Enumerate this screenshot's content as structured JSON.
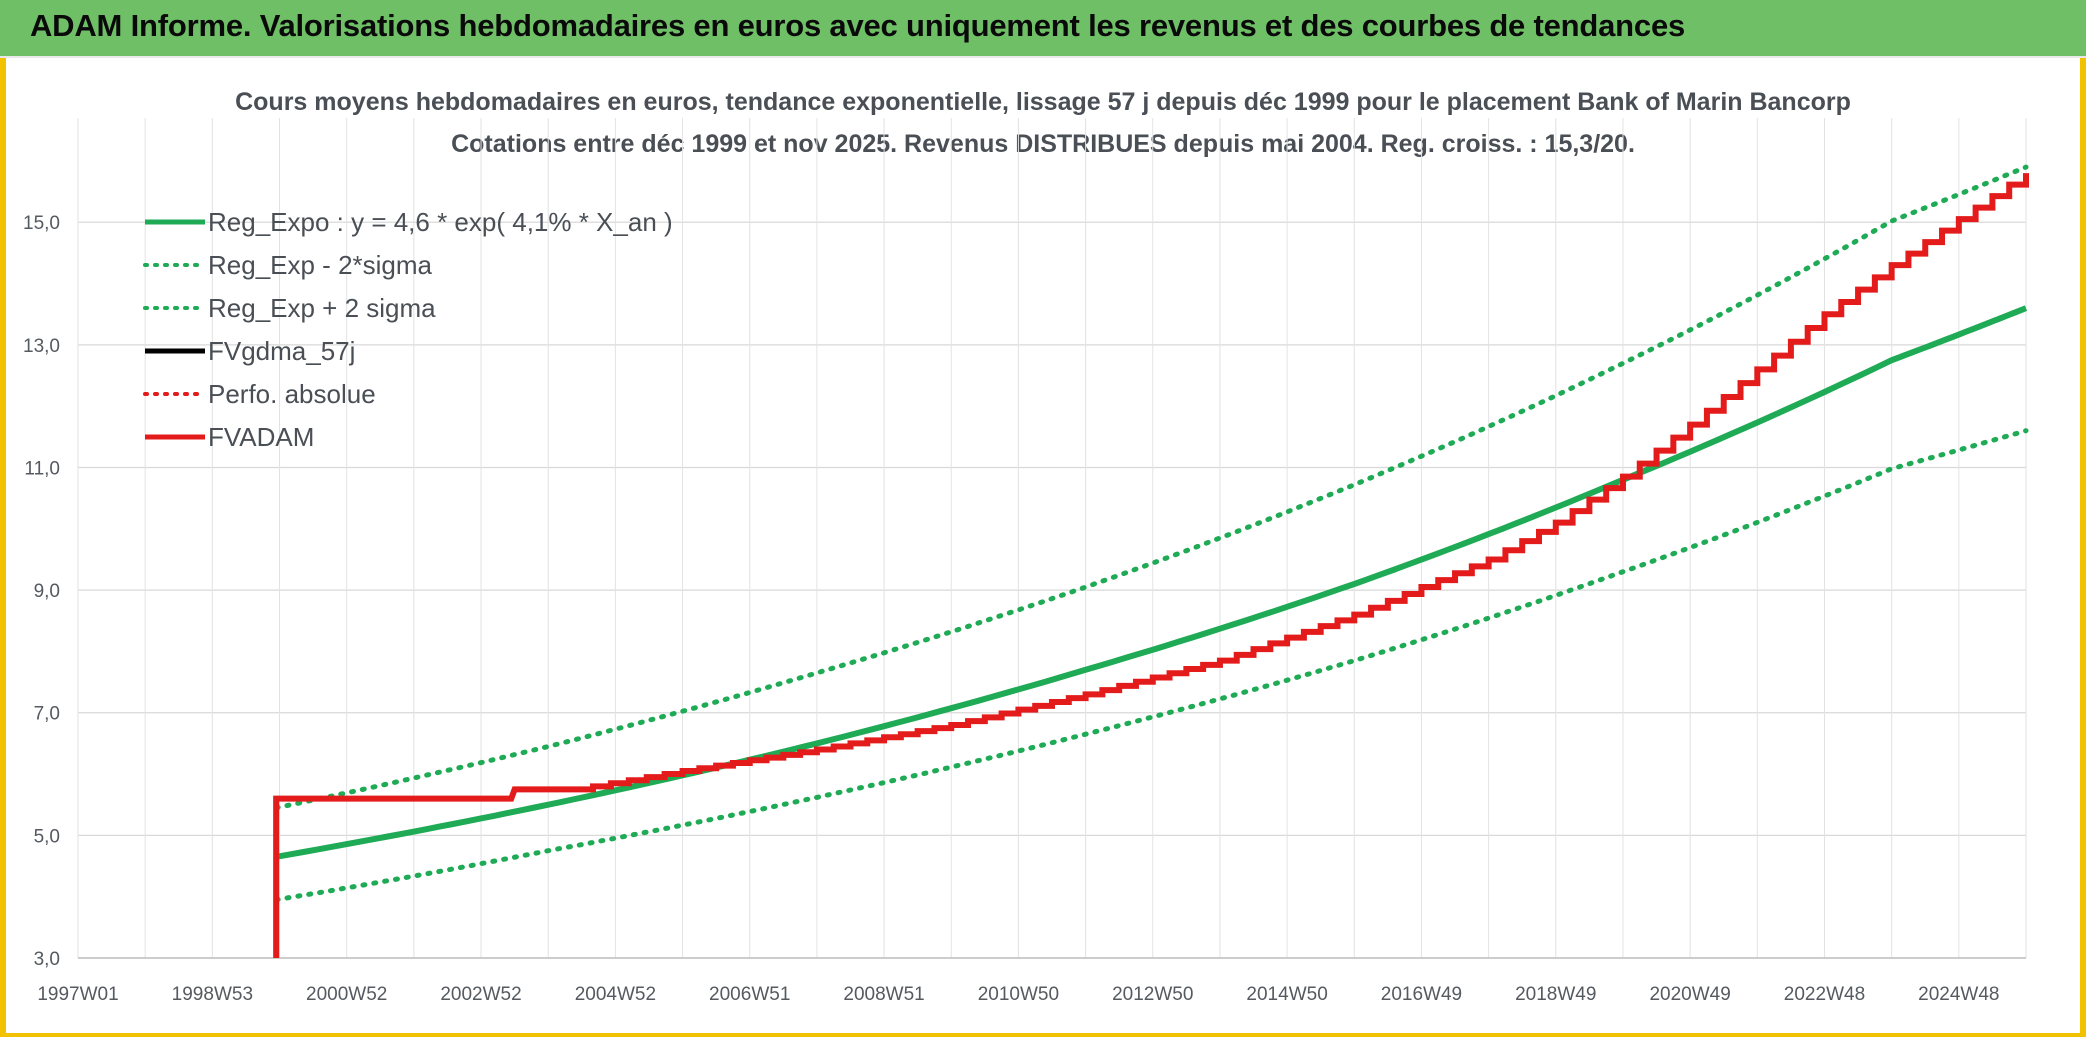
{
  "header": {
    "banner": "ADAM Informe. Valorisations hebdomadaires en euros avec uniquement les revenus et des courbes de tendances"
  },
  "chart_data": {
    "type": "line",
    "title_line1": "Cours moyens hebdomadaires en euros, tendance exponentielle, lissage 57 j depuis déc 1999 pour le placement Bank of Marin Bancorp",
    "title_line2": "Cotations entre déc 1999 et nov 2025. Revenus DISTRIBUES depuis mai 2004. Reg. croiss. : 15,3/20.",
    "x_ticks": [
      "1997W01",
      "1998W53",
      "2000W52",
      "2002W52",
      "2004W52",
      "2006W51",
      "2008W51",
      "2010W50",
      "2012W50",
      "2014W50",
      "2016W49",
      "2018W49",
      "2020W49",
      "2022W48",
      "2024W48"
    ],
    "y_ticks": [
      "3,0",
      "5,0",
      "7,0",
      "9,0",
      "11,0",
      "13,0",
      "15,0"
    ],
    "ylim": [
      3,
      16.7
    ],
    "xlim": [
      1997.0,
      2026.0
    ],
    "grid": true,
    "colors": {
      "green": "#1faa55",
      "red": "#e31b1b",
      "black": "#000000"
    },
    "legend": [
      {
        "label": "Reg_Expo : y = 4,6 * exp( 4,1% *  X_an )",
        "color": "#1faa55",
        "style": "solid"
      },
      {
        "label": "Reg_Exp - 2*sigma",
        "color": "#1faa55",
        "style": "dotted"
      },
      {
        "label": "Reg_Exp + 2 sigma",
        "color": "#1faa55",
        "style": "dotted"
      },
      {
        "label": "FVgdma_57j",
        "color": "#000000",
        "style": "solid"
      },
      {
        "label": "Perfo. absolue",
        "color": "#e31b1b",
        "style": "dotted"
      },
      {
        "label": "FVADAM",
        "color": "#e31b1b",
        "style": "solid"
      }
    ],
    "series": [
      {
        "name": "Reg_Expo",
        "x": [
          1999.95,
          2004.0,
          2008.0,
          2012.0,
          2016.0,
          2020.0,
          2024.0,
          2026.0
        ],
        "values": [
          4.65,
          5.5,
          6.5,
          7.7,
          9.1,
          10.8,
          12.75,
          13.6
        ]
      },
      {
        "name": "Reg_Exp - 2*sigma",
        "x": [
          1999.95,
          2004.0,
          2008.0,
          2012.0,
          2016.0,
          2020.0,
          2024.0,
          2026.0
        ],
        "values": [
          3.95,
          4.75,
          5.62,
          6.65,
          7.85,
          9.3,
          10.98,
          11.6
        ]
      },
      {
        "name": "Reg_Exp + 2 sigma",
        "x": [
          1999.95,
          2004.0,
          2008.0,
          2012.0,
          2016.0,
          2020.0,
          2024.0,
          2026.0
        ],
        "values": [
          5.45,
          6.45,
          7.65,
          9.05,
          10.72,
          12.7,
          15.02,
          15.9
        ]
      },
      {
        "name": "FVADAM",
        "x": [
          1999.95,
          1999.95,
          2003.45,
          2003.5,
          2004.4,
          2006.0,
          2008.0,
          2010.0,
          2012.0,
          2014.0,
          2016.0,
          2018.0,
          2019.0,
          2020.0,
          2021.0,
          2022.0,
          2023.0,
          2024.0,
          2025.0,
          2026.0
        ],
        "values": [
          3.0,
          5.6,
          5.6,
          5.75,
          5.75,
          6.05,
          6.4,
          6.8,
          7.3,
          7.85,
          8.6,
          9.5,
          10.1,
          10.85,
          11.7,
          12.6,
          13.5,
          14.3,
          15.05,
          15.8
        ]
      }
    ]
  }
}
